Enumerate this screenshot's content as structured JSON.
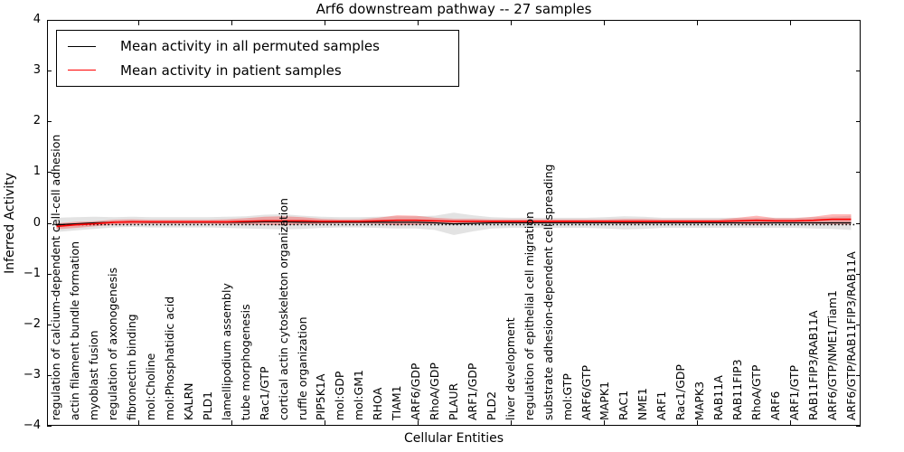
{
  "title": "Arf6 downstream pathway -- 27 samples",
  "legend": {
    "items": [
      {
        "label": "Mean activity in all permuted samples",
        "color": "#000000"
      },
      {
        "label": "Mean activity in patient samples",
        "color": "#ff0000"
      }
    ]
  },
  "chart_data": {
    "type": "line",
    "title": "Arf6 downstream pathway -- 27 samples",
    "xlabel": "Cellular Entities",
    "ylabel": "Inferred Activity",
    "ylim": [
      -4,
      4
    ],
    "ytick_labels": [
      "4",
      "3",
      "2",
      "1",
      "0",
      "−1",
      "−2",
      "−3",
      "−4"
    ],
    "ytick_values": [
      4,
      3,
      2,
      1,
      0,
      -1,
      -2,
      -3,
      -4
    ],
    "grid": false,
    "legend_position": "upper left",
    "zero_reference_line": {
      "y": 0,
      "style": "dotted",
      "color": "#000000"
    },
    "categories": [
      "regulation of calcium-dependent cell-cell adhesion",
      "actin filament bundle formation",
      "myoblast fusion",
      "regulation of axonogenesis",
      "fibronectin binding",
      "mol:Choline",
      "mol:Phosphatidic acid",
      "KALRN",
      "PLD1",
      "lamellipodium assembly",
      "tube morphogenesis",
      "Rac1/GTP",
      "cortical actin cytoskeleton organization",
      "ruffle organization",
      "PIP5K1A",
      "mol:GDP",
      "mol:GM1",
      "RHOA",
      "TIAM1",
      "ARF6/GDP",
      "RhoA/GDP",
      "PLAUR",
      "ARF1/GDP",
      "PLD2",
      "liver development",
      "regulation of epithelial cell migration",
      "substrate adhesion-dependent cell spreading",
      "mol:GTP",
      "ARF6/GTP",
      "MAPK1",
      "RAC1",
      "NME1",
      "ARF1",
      "Rac1/GDP",
      "MAPK3",
      "RAB11A",
      "RAB11FIP3",
      "RhoA/GTP",
      "ARF6",
      "ARF1/GTP",
      "RAB11FIP3/RAB11A",
      "ARF6/GTP/NME1/Tiam1",
      "ARF6/GTP/RAB11FIP3/RAB11A"
    ],
    "series": [
      {
        "name": "Mean activity in all permuted samples",
        "color": "#000000",
        "band_color": "#c8c8c8",
        "values": [
          -0.04,
          -0.02,
          0.0,
          0.01,
          0.02,
          0.01,
          0.01,
          0.01,
          0.01,
          0.01,
          0.01,
          0.02,
          0.02,
          0.01,
          0.01,
          0.01,
          0.01,
          0.01,
          0.01,
          0.01,
          0.0,
          -0.02,
          -0.01,
          0.0,
          0.0,
          0.0,
          0.0,
          0.0,
          0.0,
          0.0,
          0.0,
          0.0,
          0.0,
          0.0,
          0.0,
          0.0,
          0.0,
          0.0,
          0.0,
          0.0,
          0.0,
          0.0,
          0.0
        ],
        "std_band": [
          0.14,
          0.13,
          0.12,
          0.1,
          0.1,
          0.1,
          0.1,
          0.1,
          0.1,
          0.11,
          0.12,
          0.14,
          0.15,
          0.13,
          0.11,
          0.1,
          0.1,
          0.11,
          0.12,
          0.12,
          0.14,
          0.22,
          0.16,
          0.11,
          0.1,
          0.1,
          0.1,
          0.1,
          0.1,
          0.11,
          0.13,
          0.12,
          0.1,
          0.1,
          0.1,
          0.1,
          0.1,
          0.1,
          0.1,
          0.1,
          0.11,
          0.12,
          0.14
        ]
      },
      {
        "name": "Mean activity in patient samples",
        "color": "#ff0000",
        "band_color": "#ff0000",
        "values": [
          -0.07,
          -0.04,
          -0.02,
          0.01,
          0.02,
          0.02,
          0.02,
          0.02,
          0.02,
          0.02,
          0.03,
          0.04,
          0.04,
          0.04,
          0.03,
          0.03,
          0.03,
          0.04,
          0.05,
          0.05,
          0.04,
          0.03,
          0.03,
          0.03,
          0.03,
          0.03,
          0.03,
          0.03,
          0.03,
          0.03,
          0.03,
          0.03,
          0.03,
          0.03,
          0.03,
          0.03,
          0.04,
          0.05,
          0.04,
          0.04,
          0.05,
          0.07,
          0.07
        ],
        "std_band": [
          0.06,
          0.06,
          0.05,
          0.05,
          0.05,
          0.04,
          0.04,
          0.04,
          0.04,
          0.05,
          0.06,
          0.08,
          0.09,
          0.07,
          0.05,
          0.04,
          0.04,
          0.06,
          0.1,
          0.09,
          0.06,
          0.05,
          0.05,
          0.04,
          0.04,
          0.04,
          0.04,
          0.04,
          0.04,
          0.04,
          0.05,
          0.05,
          0.04,
          0.04,
          0.04,
          0.04,
          0.06,
          0.09,
          0.05,
          0.05,
          0.07,
          0.1,
          0.1
        ]
      }
    ]
  }
}
